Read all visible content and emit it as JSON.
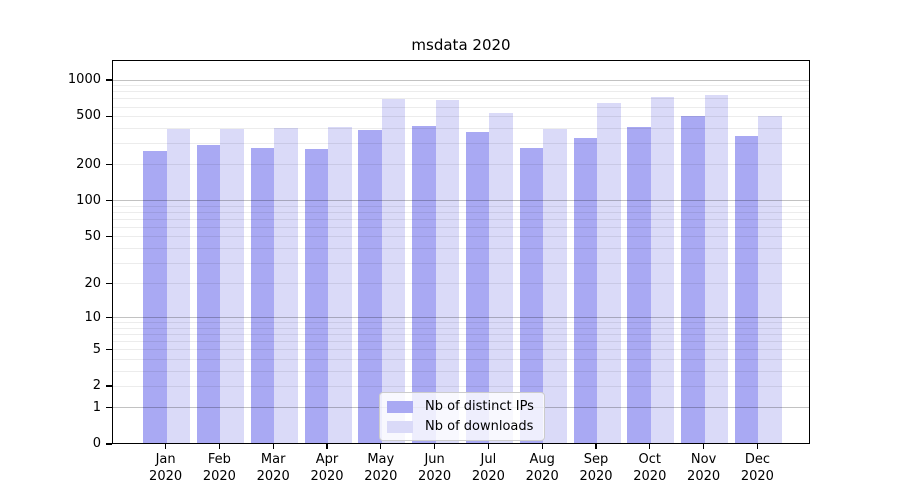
{
  "title": "msdata 2020",
  "chart_data": {
    "type": "bar",
    "title": "msdata 2020",
    "categories": [
      "Jan",
      "Feb",
      "Mar",
      "Apr",
      "May",
      "Jun",
      "Jul",
      "Aug",
      "Sep",
      "Oct",
      "Nov",
      "Dec"
    ],
    "category_year": "2020",
    "series": [
      {
        "name": "Nb of distinct IPs",
        "color": "#a9a9f3",
        "values": [
          255,
          285,
          268,
          265,
          380,
          410,
          365,
          270,
          325,
          400,
          495,
          340
        ]
      },
      {
        "name": "Nb of downloads",
        "color": "#dadaf8",
        "values": [
          385,
          385,
          395,
          400,
          685,
          670,
          525,
          385,
          635,
          710,
          740,
          495
        ]
      }
    ],
    "xlabel": "",
    "ylabel": "",
    "y_axis": {
      "scale": "symlog",
      "tick_labels": [
        "0",
        "1",
        "2",
        "5",
        "10",
        "20",
        "50",
        "100",
        "200",
        "500",
        "1000"
      ],
      "tick_values": [
        0,
        1,
        2,
        5,
        10,
        20,
        50,
        100,
        200,
        500,
        1000
      ],
      "major_gridline_values": [
        1,
        10,
        100,
        1000
      ],
      "minor_gridline_values": [
        2,
        3,
        4,
        5,
        6,
        7,
        8,
        9,
        20,
        30,
        40,
        50,
        60,
        70,
        80,
        90,
        200,
        300,
        400,
        500,
        600,
        700,
        800,
        900
      ],
      "ylim": [
        0,
        1434
      ]
    },
    "legend": {
      "position": "bottom-center",
      "entries": [
        "Nb of distinct IPs",
        "Nb of downloads"
      ]
    },
    "grid": true,
    "colors": {
      "major_grid": "rgba(0,0,0,0.24)",
      "minor_grid": "rgba(0,0,0,0.075)",
      "spine": "#000000",
      "background": "#ffffff"
    }
  }
}
